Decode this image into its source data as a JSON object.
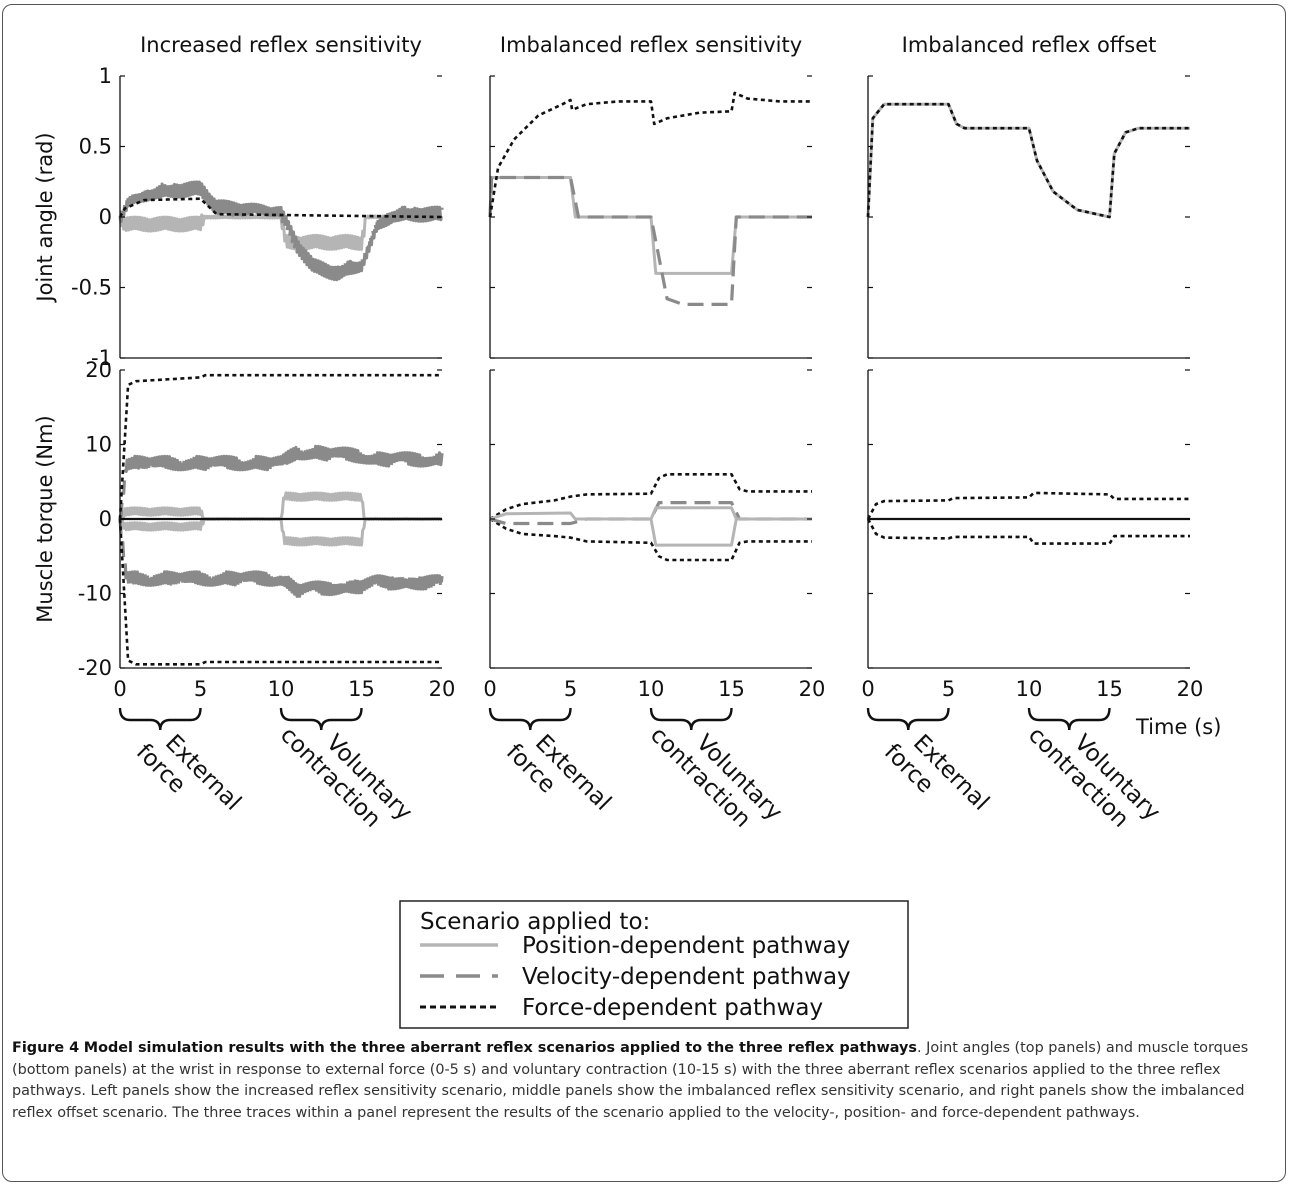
{
  "figure": {
    "caption_label": "Figure 4",
    "caption_title": "Model simulation results with the three aberrant reflex scenarios applied to the three reflex pathways",
    "caption_body": ". Joint angles (top panels) and muscle torques (bottom panels) at the wrist in response to external force (0-5 s) and voluntary contraction (10-15 s) with the three aberrant reflex scenarios applied to the three reflex pathways. Left panels show the increased reflex sensitivity scenario, middle panels show the imbalanced reflex sensitivity scenario, and right panels show the imbalanced reflex offset scenario. The three traces within a panel represent the results of the scenario applied to the velocity-, position- and force-dependent pathways.",
    "column_titles": [
      "Increased reflex sensitivity",
      "Imbalanced reflex sensitivity",
      "Imbalanced reflex offset"
    ],
    "x_unit_label": "Time (s)",
    "braces": [
      {
        "range": [
          0,
          5
        ],
        "lines": [
          "External",
          "force"
        ]
      },
      {
        "range": [
          10,
          15
        ],
        "lines": [
          "Voluntary",
          "contraction"
        ]
      }
    ],
    "legend": {
      "title": "Scenario applied to:",
      "entries": [
        {
          "label": "Position-dependent pathway",
          "color": "#b5b5b5",
          "style": "solid"
        },
        {
          "label": "Velocity-dependent pathway",
          "color": "#8a8a8a",
          "style": "dashed"
        },
        {
          "label": "Force-dependent pathway",
          "color": "#111111",
          "style": "dotted"
        }
      ]
    }
  },
  "chart_data": [
    {
      "type": "line",
      "panel": "top-left",
      "ylabel": "Joint angle (rad)",
      "xlim": [
        0,
        20
      ],
      "ylim": [
        -1,
        1
      ],
      "yticks": [
        1,
        0.5,
        0,
        -0.5,
        -1
      ],
      "xticks": [],
      "series": [
        {
          "name": "Position-dependent pathway",
          "noise": 0.05,
          "points": [
            [
              0,
              0
            ],
            [
              0.3,
              -0.05
            ],
            [
              1,
              -0.05
            ],
            [
              5,
              -0.05
            ],
            [
              5.2,
              0
            ],
            [
              10,
              0
            ],
            [
              10.3,
              -0.18
            ],
            [
              15,
              -0.18
            ],
            [
              15.3,
              0
            ],
            [
              20,
              0
            ]
          ]
        },
        {
          "name": "Velocity-dependent pathway",
          "noise": 0.05,
          "points": [
            [
              0,
              0
            ],
            [
              0.5,
              0.12
            ],
            [
              2,
              0.18
            ],
            [
              5,
              0.2
            ],
            [
              6,
              0.07
            ],
            [
              10,
              0.02
            ],
            [
              11,
              -0.2
            ],
            [
              12,
              -0.35
            ],
            [
              13.5,
              -0.4
            ],
            [
              15,
              -0.33
            ],
            [
              16,
              -0.05
            ],
            [
              17,
              0.02
            ],
            [
              20,
              0.02
            ]
          ]
        },
        {
          "name": "Force-dependent pathway",
          "points": [
            [
              0,
              0
            ],
            [
              0.3,
              0.06
            ],
            [
              1.5,
              0.12
            ],
            [
              5,
              0.13
            ],
            [
              6,
              0.02
            ],
            [
              20,
              0
            ]
          ]
        }
      ]
    },
    {
      "type": "line",
      "panel": "top-middle",
      "xlim": [
        0,
        20
      ],
      "ylim": [
        -1,
        1
      ],
      "yticks": [],
      "xticks": [],
      "series": [
        {
          "name": "Position-dependent pathway",
          "points": [
            [
              0,
              0
            ],
            [
              0.1,
              0.28
            ],
            [
              5,
              0.28
            ],
            [
              5.3,
              0
            ],
            [
              10,
              0
            ],
            [
              10.3,
              -0.4
            ],
            [
              15,
              -0.4
            ],
            [
              15.3,
              0
            ],
            [
              20,
              0
            ]
          ]
        },
        {
          "name": "Velocity-dependent pathway",
          "points": [
            [
              0,
              0
            ],
            [
              0.1,
              0.28
            ],
            [
              5,
              0.28
            ],
            [
              5.5,
              0
            ],
            [
              10,
              0
            ],
            [
              11,
              -0.58
            ],
            [
              12,
              -0.62
            ],
            [
              15,
              -0.62
            ],
            [
              15.3,
              0
            ],
            [
              20,
              0
            ]
          ]
        },
        {
          "name": "Force-dependent pathway",
          "points": [
            [
              0,
              0
            ],
            [
              0.5,
              0.35
            ],
            [
              1.5,
              0.55
            ],
            [
              3,
              0.72
            ],
            [
              4.5,
              0.8
            ],
            [
              5,
              0.83
            ],
            [
              5.1,
              0.76
            ],
            [
              6,
              0.8
            ],
            [
              8,
              0.82
            ],
            [
              10,
              0.82
            ],
            [
              10.2,
              0.66
            ],
            [
              11,
              0.7
            ],
            [
              13,
              0.74
            ],
            [
              15,
              0.75
            ],
            [
              15.2,
              0.88
            ],
            [
              16,
              0.84
            ],
            [
              18,
              0.82
            ],
            [
              20,
              0.82
            ]
          ]
        }
      ]
    },
    {
      "type": "line",
      "panel": "top-right",
      "xlim": [
        0,
        20
      ],
      "ylim": [
        -1,
        1
      ],
      "yticks": [],
      "xticks": [],
      "series": [
        {
          "name": "Position-dependent pathway",
          "points": [
            [
              0,
              0
            ],
            [
              0.3,
              0.7
            ],
            [
              1,
              0.8
            ],
            [
              5,
              0.8
            ],
            [
              5.5,
              0.66
            ],
            [
              6,
              0.63
            ],
            [
              10,
              0.63
            ],
            [
              10.5,
              0.4
            ],
            [
              11.5,
              0.18
            ],
            [
              13,
              0.05
            ],
            [
              15,
              0
            ],
            [
              15.3,
              0.45
            ],
            [
              16,
              0.6
            ],
            [
              16.8,
              0.63
            ],
            [
              20,
              0.63
            ]
          ]
        },
        {
          "name": "Force-dependent pathway",
          "points": [
            [
              0,
              0
            ],
            [
              0.3,
              0.7
            ],
            [
              1,
              0.8
            ],
            [
              5,
              0.8
            ],
            [
              5.5,
              0.66
            ],
            [
              6,
              0.63
            ],
            [
              10,
              0.63
            ],
            [
              10.5,
              0.4
            ],
            [
              11.5,
              0.18
            ],
            [
              13,
              0.05
            ],
            [
              15,
              0
            ],
            [
              15.3,
              0.45
            ],
            [
              16,
              0.6
            ],
            [
              16.8,
              0.63
            ],
            [
              20,
              0.63
            ]
          ]
        }
      ]
    },
    {
      "type": "line",
      "panel": "bottom-left",
      "ylabel": "Muscle torque (Nm)",
      "xlim": [
        0,
        20
      ],
      "ylim": [
        -20,
        20
      ],
      "yticks": [
        20,
        10,
        0,
        -10,
        -20
      ],
      "xticks": [
        0,
        5,
        10,
        15,
        20
      ],
      "series": [
        {
          "name": "Position-dependent pathway",
          "noise": 0.5,
          "points": [
            [
              0,
              0
            ],
            [
              0.3,
              1
            ],
            [
              5,
              1
            ],
            [
              5.2,
              0
            ],
            [
              10,
              0
            ],
            [
              10.2,
              3
            ],
            [
              15,
              3
            ],
            [
              15.2,
              0
            ],
            [
              20,
              0
            ]
          ]
        },
        {
          "name": "Position-dependent pathway",
          "noise": 0.5,
          "points": [
            [
              0,
              0
            ],
            [
              0.3,
              -1
            ],
            [
              5,
              -1
            ],
            [
              5.2,
              0
            ],
            [
              10,
              0
            ],
            [
              10.2,
              -3
            ],
            [
              15,
              -3
            ],
            [
              15.2,
              0
            ],
            [
              20,
              0
            ]
          ]
        },
        {
          "name": "Velocity-dependent pathway",
          "noise": 0.9,
          "points": [
            [
              0,
              0
            ],
            [
              0.4,
              7.5
            ],
            [
              10,
              7.5
            ],
            [
              11,
              9
            ],
            [
              15,
              8.5
            ],
            [
              16,
              8
            ],
            [
              20,
              8
            ]
          ]
        },
        {
          "name": "Velocity-dependent pathway",
          "noise": 0.9,
          "points": [
            [
              0,
              0
            ],
            [
              0.4,
              -8
            ],
            [
              10,
              -8
            ],
            [
              11,
              -9.5
            ],
            [
              15,
              -9
            ],
            [
              16,
              -8.5
            ],
            [
              20,
              -8.5
            ]
          ]
        },
        {
          "name": "Force-dependent pathway",
          "points": [
            [
              0,
              0
            ],
            [
              0.5,
              18
            ],
            [
              1,
              18.5
            ],
            [
              5,
              19
            ],
            [
              5.3,
              19.3
            ],
            [
              20,
              19.3
            ]
          ]
        },
        {
          "name": "Force-dependent pathway",
          "points": [
            [
              0,
              0
            ],
            [
              0.5,
              -19
            ],
            [
              1,
              -19.5
            ],
            [
              5,
              -19.5
            ],
            [
              5.3,
              -19.2
            ],
            [
              20,
              -19.2
            ]
          ]
        },
        {
          "name": "Zero",
          "points": [
            [
              0,
              0
            ],
            [
              20,
              0
            ]
          ]
        }
      ]
    },
    {
      "type": "line",
      "panel": "bottom-middle",
      "xlim": [
        0,
        20
      ],
      "ylim": [
        -20,
        20
      ],
      "yticks": [],
      "xticks": [
        0,
        5,
        10,
        15,
        20
      ],
      "series": [
        {
          "name": "Force-dependent pathway",
          "points": [
            [
              0,
              0
            ],
            [
              1,
              1.3
            ],
            [
              2,
              2
            ],
            [
              4,
              2.5
            ],
            [
              5,
              3
            ],
            [
              6,
              3.3
            ],
            [
              10,
              3.4
            ],
            [
              10.5,
              5.5
            ],
            [
              11,
              6
            ],
            [
              15,
              6
            ],
            [
              15.5,
              4
            ],
            [
              16,
              3.7
            ],
            [
              20,
              3.7
            ]
          ]
        },
        {
          "name": "Force-dependent pathway",
          "points": [
            [
              0,
              0
            ],
            [
              1,
              -1.3
            ],
            [
              2,
              -2
            ],
            [
              4,
              -2.3
            ],
            [
              5,
              -2.5
            ],
            [
              6,
              -3
            ],
            [
              10,
              -3.2
            ],
            [
              10.5,
              -5
            ],
            [
              11,
              -5.5
            ],
            [
              15,
              -5.5
            ],
            [
              15.5,
              -3.2
            ],
            [
              16,
              -3
            ],
            [
              20,
              -3
            ]
          ]
        },
        {
          "name": "Velocity-dependent pathway",
          "points": [
            [
              0,
              0
            ],
            [
              1,
              -0.6
            ],
            [
              5,
              -0.6
            ],
            [
              6,
              0
            ],
            [
              10,
              0
            ],
            [
              10.5,
              2.2
            ],
            [
              15,
              2.2
            ],
            [
              15.5,
              0
            ],
            [
              20,
              0
            ]
          ]
        },
        {
          "name": "Position-dependent pathway",
          "points": [
            [
              0,
              0
            ],
            [
              1,
              0.7
            ],
            [
              5,
              0.8
            ],
            [
              5.3,
              0
            ],
            [
              10,
              0
            ],
            [
              10.3,
              -3.5
            ],
            [
              15,
              -3.5
            ],
            [
              15.3,
              0
            ],
            [
              20,
              0
            ]
          ]
        },
        {
          "name": "Position-dependent pathway",
          "points": [
            [
              10,
              0
            ],
            [
              10.3,
              1.5
            ],
            [
              15,
              1.5
            ],
            [
              15.3,
              0
            ]
          ]
        }
      ]
    },
    {
      "type": "line",
      "panel": "bottom-right",
      "xlim": [
        0,
        20
      ],
      "ylim": [
        -20,
        20
      ],
      "yticks": [],
      "xticks": [
        0,
        5,
        10,
        15,
        20
      ],
      "series": [
        {
          "name": "Force-dependent pathway",
          "points": [
            [
              0,
              0
            ],
            [
              0.5,
              2
            ],
            [
              1,
              2.4
            ],
            [
              5,
              2.5
            ],
            [
              5.3,
              2.8
            ],
            [
              10,
              2.9
            ],
            [
              10.3,
              3.5
            ],
            [
              15,
              3.3
            ],
            [
              15.3,
              2.7
            ],
            [
              20,
              2.7
            ]
          ]
        },
        {
          "name": "Force-dependent pathway",
          "points": [
            [
              0,
              0
            ],
            [
              0.5,
              -2
            ],
            [
              1,
              -2.5
            ],
            [
              5,
              -2.6
            ],
            [
              5.3,
              -2.4
            ],
            [
              10,
              -2.4
            ],
            [
              10.3,
              -3.3
            ],
            [
              15,
              -3.3
            ],
            [
              15.3,
              -2.3
            ],
            [
              20,
              -2.3
            ]
          ]
        },
        {
          "name": "Zero",
          "points": [
            [
              0,
              0
            ],
            [
              20,
              0
            ]
          ]
        }
      ]
    }
  ]
}
